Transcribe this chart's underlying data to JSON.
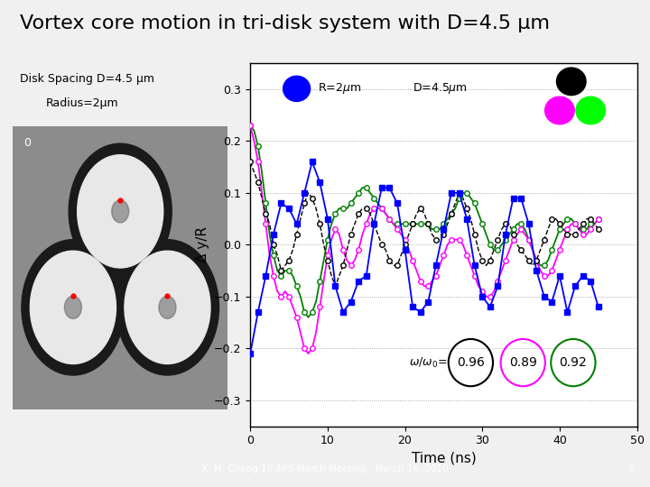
{
  "title": "Vortex core motion in tri-disk system with D=4.5 μm",
  "title_fontsize": 16,
  "background_color": "#f0f0f0",
  "left_label_line1": "Disk Spacing D=4.5 μm",
  "left_label_line2": "Radius=2μm",
  "xlabel": "Time (ns)",
  "ylabel": "Δ y/R",
  "xlim": [
    0,
    50
  ],
  "ylim": [
    -0.35,
    0.35
  ],
  "yticks": [
    -0.3,
    -0.2,
    -0.1,
    0.0,
    0.1,
    0.2,
    0.3
  ],
  "xticks": [
    0,
    10,
    20,
    30,
    40,
    50
  ],
  "footer_text": "X. M. Cheng 10 APS March Meeting , March 16, 2010",
  "footer_page": "6",
  "blue_data_x": [
    0,
    1,
    2,
    3,
    4,
    5,
    6,
    7,
    8,
    9,
    10,
    11,
    12,
    13,
    14,
    15,
    16,
    17,
    18,
    19,
    20,
    21,
    22,
    23,
    24,
    25,
    26,
    27,
    28,
    29,
    30,
    31,
    32,
    33,
    34,
    35,
    36,
    37,
    38,
    39,
    40,
    41,
    42,
    43,
    44,
    45
  ],
  "blue_data_y": [
    -0.21,
    -0.13,
    -0.06,
    0.02,
    0.08,
    0.07,
    0.04,
    0.1,
    0.16,
    0.12,
    0.05,
    -0.08,
    -0.13,
    -0.11,
    -0.07,
    -0.06,
    0.04,
    0.11,
    0.11,
    0.08,
    -0.01,
    -0.12,
    -0.13,
    -0.11,
    -0.04,
    0.03,
    0.1,
    0.1,
    0.05,
    -0.04,
    -0.1,
    -0.12,
    -0.08,
    0.02,
    0.09,
    0.09,
    0.04,
    -0.05,
    -0.1,
    -0.11,
    -0.06,
    -0.13,
    -0.08,
    -0.06,
    -0.07,
    -0.12
  ],
  "black_data_x": [
    0,
    0.5,
    1,
    1.5,
    2,
    2.5,
    3,
    3.5,
    4,
    4.5,
    5,
    5.5,
    6,
    6.5,
    7,
    7.5,
    8,
    8.5,
    9,
    9.5,
    10,
    10.5,
    11,
    11.5,
    12,
    12.5,
    13,
    13.5,
    14,
    14.5,
    15,
    15.5,
    16,
    16.5,
    17,
    17.5,
    18,
    18.5,
    19,
    19.5,
    20,
    20.5,
    21,
    21.5,
    22,
    22.5,
    23,
    23.5,
    24,
    24.5,
    25,
    25.5,
    26,
    26.5,
    27,
    27.5,
    28,
    28.5,
    29,
    29.5,
    30,
    30.5,
    31,
    31.5,
    32,
    32.5,
    33,
    33.5,
    34,
    34.5,
    35,
    35.5,
    36,
    36.5,
    37,
    37.5,
    38,
    38.5,
    39,
    39.5,
    40,
    40.5,
    41,
    41.5,
    42,
    42.5,
    43,
    43.5,
    44,
    44.5,
    45
  ],
  "black_data_y": [
    0.16,
    0.14,
    0.12,
    0.09,
    0.06,
    0.04,
    0.0,
    -0.02,
    -0.05,
    -0.04,
    -0.03,
    -0.01,
    0.02,
    0.05,
    0.08,
    0.1,
    0.09,
    0.07,
    0.04,
    0.0,
    -0.03,
    -0.06,
    -0.08,
    -0.06,
    -0.04,
    -0.01,
    0.02,
    0.04,
    0.06,
    0.07,
    0.07,
    0.06,
    0.04,
    0.02,
    0.0,
    -0.01,
    -0.03,
    -0.04,
    -0.04,
    -0.02,
    0.0,
    0.02,
    0.04,
    0.06,
    0.07,
    0.06,
    0.04,
    0.02,
    0.01,
    0.01,
    0.02,
    0.04,
    0.06,
    0.08,
    0.1,
    0.09,
    0.07,
    0.05,
    0.02,
    -0.01,
    -0.03,
    -0.04,
    -0.03,
    -0.01,
    0.01,
    0.03,
    0.04,
    0.04,
    0.02,
    0.0,
    -0.01,
    -0.02,
    -0.03,
    -0.04,
    -0.03,
    -0.01,
    0.01,
    0.03,
    0.05,
    0.05,
    0.04,
    0.03,
    0.02,
    0.02,
    0.02,
    0.03,
    0.04,
    0.05,
    0.05,
    0.04,
    0.03
  ],
  "magenta_data_x": [
    0,
    0.5,
    1,
    1.5,
    2,
    2.5,
    3,
    3.5,
    4,
    4.5,
    5,
    5.5,
    6,
    6.5,
    7,
    7.5,
    8,
    8.5,
    9,
    9.5,
    10,
    10.5,
    11,
    11.5,
    12,
    12.5,
    13,
    13.5,
    14,
    14.5,
    15,
    15.5,
    16,
    16.5,
    17,
    17.5,
    18,
    18.5,
    19,
    19.5,
    20,
    20.5,
    21,
    21.5,
    22,
    22.5,
    23,
    23.5,
    24,
    24.5,
    25,
    25.5,
    26,
    26.5,
    27,
    27.5,
    28,
    28.5,
    29,
    29.5,
    30,
    30.5,
    31,
    31.5,
    32,
    32.5,
    33,
    33.5,
    34,
    34.5,
    35,
    35.5,
    36,
    36.5,
    37,
    37.5,
    38,
    38.5,
    39,
    39.5,
    40,
    40.5,
    41,
    41.5,
    42,
    42.5,
    43,
    43.5,
    44,
    44.5,
    45
  ],
  "magenta_data_y": [
    0.23,
    0.2,
    0.16,
    0.1,
    0.04,
    -0.02,
    -0.06,
    -0.09,
    -0.1,
    -0.09,
    -0.1,
    -0.12,
    -0.14,
    -0.17,
    -0.2,
    -0.21,
    -0.2,
    -0.17,
    -0.12,
    -0.07,
    -0.02,
    0.01,
    0.03,
    0.02,
    -0.01,
    -0.03,
    -0.04,
    -0.03,
    -0.01,
    0.02,
    0.04,
    0.06,
    0.07,
    0.07,
    0.07,
    0.06,
    0.05,
    0.04,
    0.03,
    0.02,
    0.01,
    -0.01,
    -0.03,
    -0.05,
    -0.07,
    -0.08,
    -0.08,
    -0.07,
    -0.06,
    -0.04,
    -0.02,
    0.0,
    0.01,
    0.01,
    0.01,
    0.0,
    -0.02,
    -0.04,
    -0.06,
    -0.08,
    -0.09,
    -0.1,
    -0.1,
    -0.09,
    -0.07,
    -0.05,
    -0.03,
    -0.01,
    0.01,
    0.02,
    0.03,
    0.02,
    0.01,
    -0.01,
    -0.03,
    -0.05,
    -0.06,
    -0.06,
    -0.05,
    -0.03,
    -0.01,
    0.01,
    0.03,
    0.04,
    0.04,
    0.03,
    0.02,
    0.02,
    0.03,
    0.04,
    0.05
  ],
  "green_data_x": [
    0,
    0.5,
    1,
    1.5,
    2,
    2.5,
    3,
    3.5,
    4,
    4.5,
    5,
    5.5,
    6,
    6.5,
    7,
    7.5,
    8,
    8.5,
    9,
    9.5,
    10,
    10.5,
    11,
    11.5,
    12,
    12.5,
    13,
    13.5,
    14,
    14.5,
    15,
    15.5,
    16,
    16.5,
    17,
    17.5,
    18,
    18.5,
    19,
    19.5,
    20,
    20.5,
    21,
    21.5,
    22,
    22.5,
    23,
    23.5,
    24,
    24.5,
    25,
    25.5,
    26,
    26.5,
    27,
    27.5,
    28,
    28.5,
    29,
    29.5,
    30,
    30.5,
    31,
    31.5,
    32,
    32.5,
    33,
    33.5,
    34,
    34.5,
    35,
    35.5,
    36,
    36.5,
    37,
    37.5,
    38,
    38.5,
    39,
    39.5,
    40,
    40.5,
    41,
    41.5,
    42,
    42.5,
    43,
    43.5,
    44,
    44.5,
    45
  ],
  "green_data_y": [
    0.23,
    0.22,
    0.19,
    0.14,
    0.08,
    0.02,
    -0.02,
    -0.05,
    -0.06,
    -0.05,
    -0.05,
    -0.06,
    -0.08,
    -0.1,
    -0.13,
    -0.14,
    -0.13,
    -0.11,
    -0.07,
    -0.03,
    0.01,
    0.04,
    0.06,
    0.07,
    0.07,
    0.07,
    0.08,
    0.09,
    0.1,
    0.11,
    0.11,
    0.1,
    0.09,
    0.08,
    0.07,
    0.06,
    0.05,
    0.04,
    0.04,
    0.04,
    0.04,
    0.04,
    0.04,
    0.04,
    0.04,
    0.04,
    0.04,
    0.03,
    0.03,
    0.03,
    0.04,
    0.05,
    0.06,
    0.07,
    0.09,
    0.1,
    0.1,
    0.09,
    0.08,
    0.06,
    0.04,
    0.02,
    0.0,
    -0.01,
    -0.01,
    0.0,
    0.01,
    0.02,
    0.03,
    0.04,
    0.04,
    0.03,
    0.01,
    -0.01,
    -0.03,
    -0.04,
    -0.04,
    -0.03,
    -0.01,
    0.01,
    0.03,
    0.04,
    0.05,
    0.05,
    0.04,
    0.03,
    0.03,
    0.03,
    0.04,
    0.04,
    0.05
  ]
}
